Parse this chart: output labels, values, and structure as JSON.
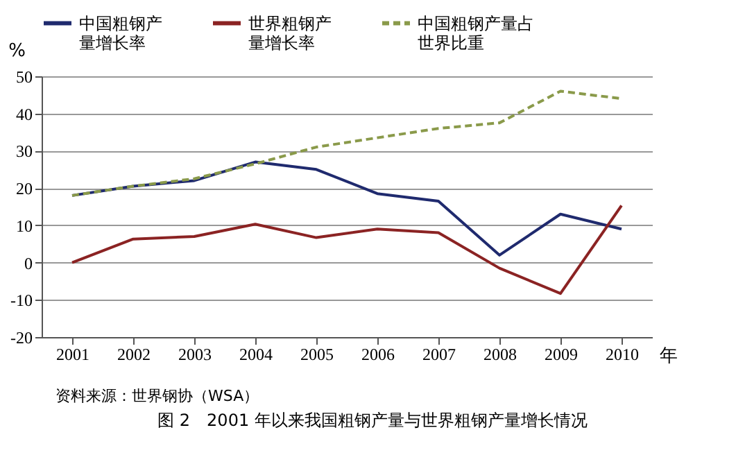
{
  "chart_data": {
    "type": "line",
    "title": "图 2　2001 年以来我国粗钢产量与世界粗钢产量增长情况",
    "xlabel": "年",
    "ylabel": "%",
    "annotations": [
      "资料来源：世界钢协（WSA）"
    ],
    "categories": [
      "2001",
      "2002",
      "2003",
      "2004",
      "2005",
      "2006",
      "2007",
      "2008",
      "2009",
      "2010"
    ],
    "series": [
      {
        "name": "中国粗钢产量增长率",
        "color": "#1f2a6e",
        "line_style": "solid",
        "values": [
          18,
          20.5,
          22,
          27,
          25,
          18.5,
          16.5,
          2,
          13,
          9
        ]
      },
      {
        "name": "世界粗钢产量增长率",
        "color": "#8b2323",
        "line_style": "solid",
        "values": [
          0,
          6.3,
          7,
          10.3,
          6.7,
          9,
          8,
          -1.5,
          -8.3,
          15.3
        ]
      },
      {
        "name": "中国粗钢产量占世界比重",
        "color": "#8a9a4a",
        "line_style": "dashed",
        "values": [
          18,
          20.5,
          22.5,
          26.5,
          31,
          33.5,
          36,
          37.5,
          46,
          44
        ]
      }
    ],
    "ylim": [
      -20,
      50
    ],
    "yticks": [
      -20,
      -10,
      0,
      10,
      20,
      30,
      40,
      50
    ],
    "grid": "y",
    "legend": "top",
    "marker": "none"
  }
}
